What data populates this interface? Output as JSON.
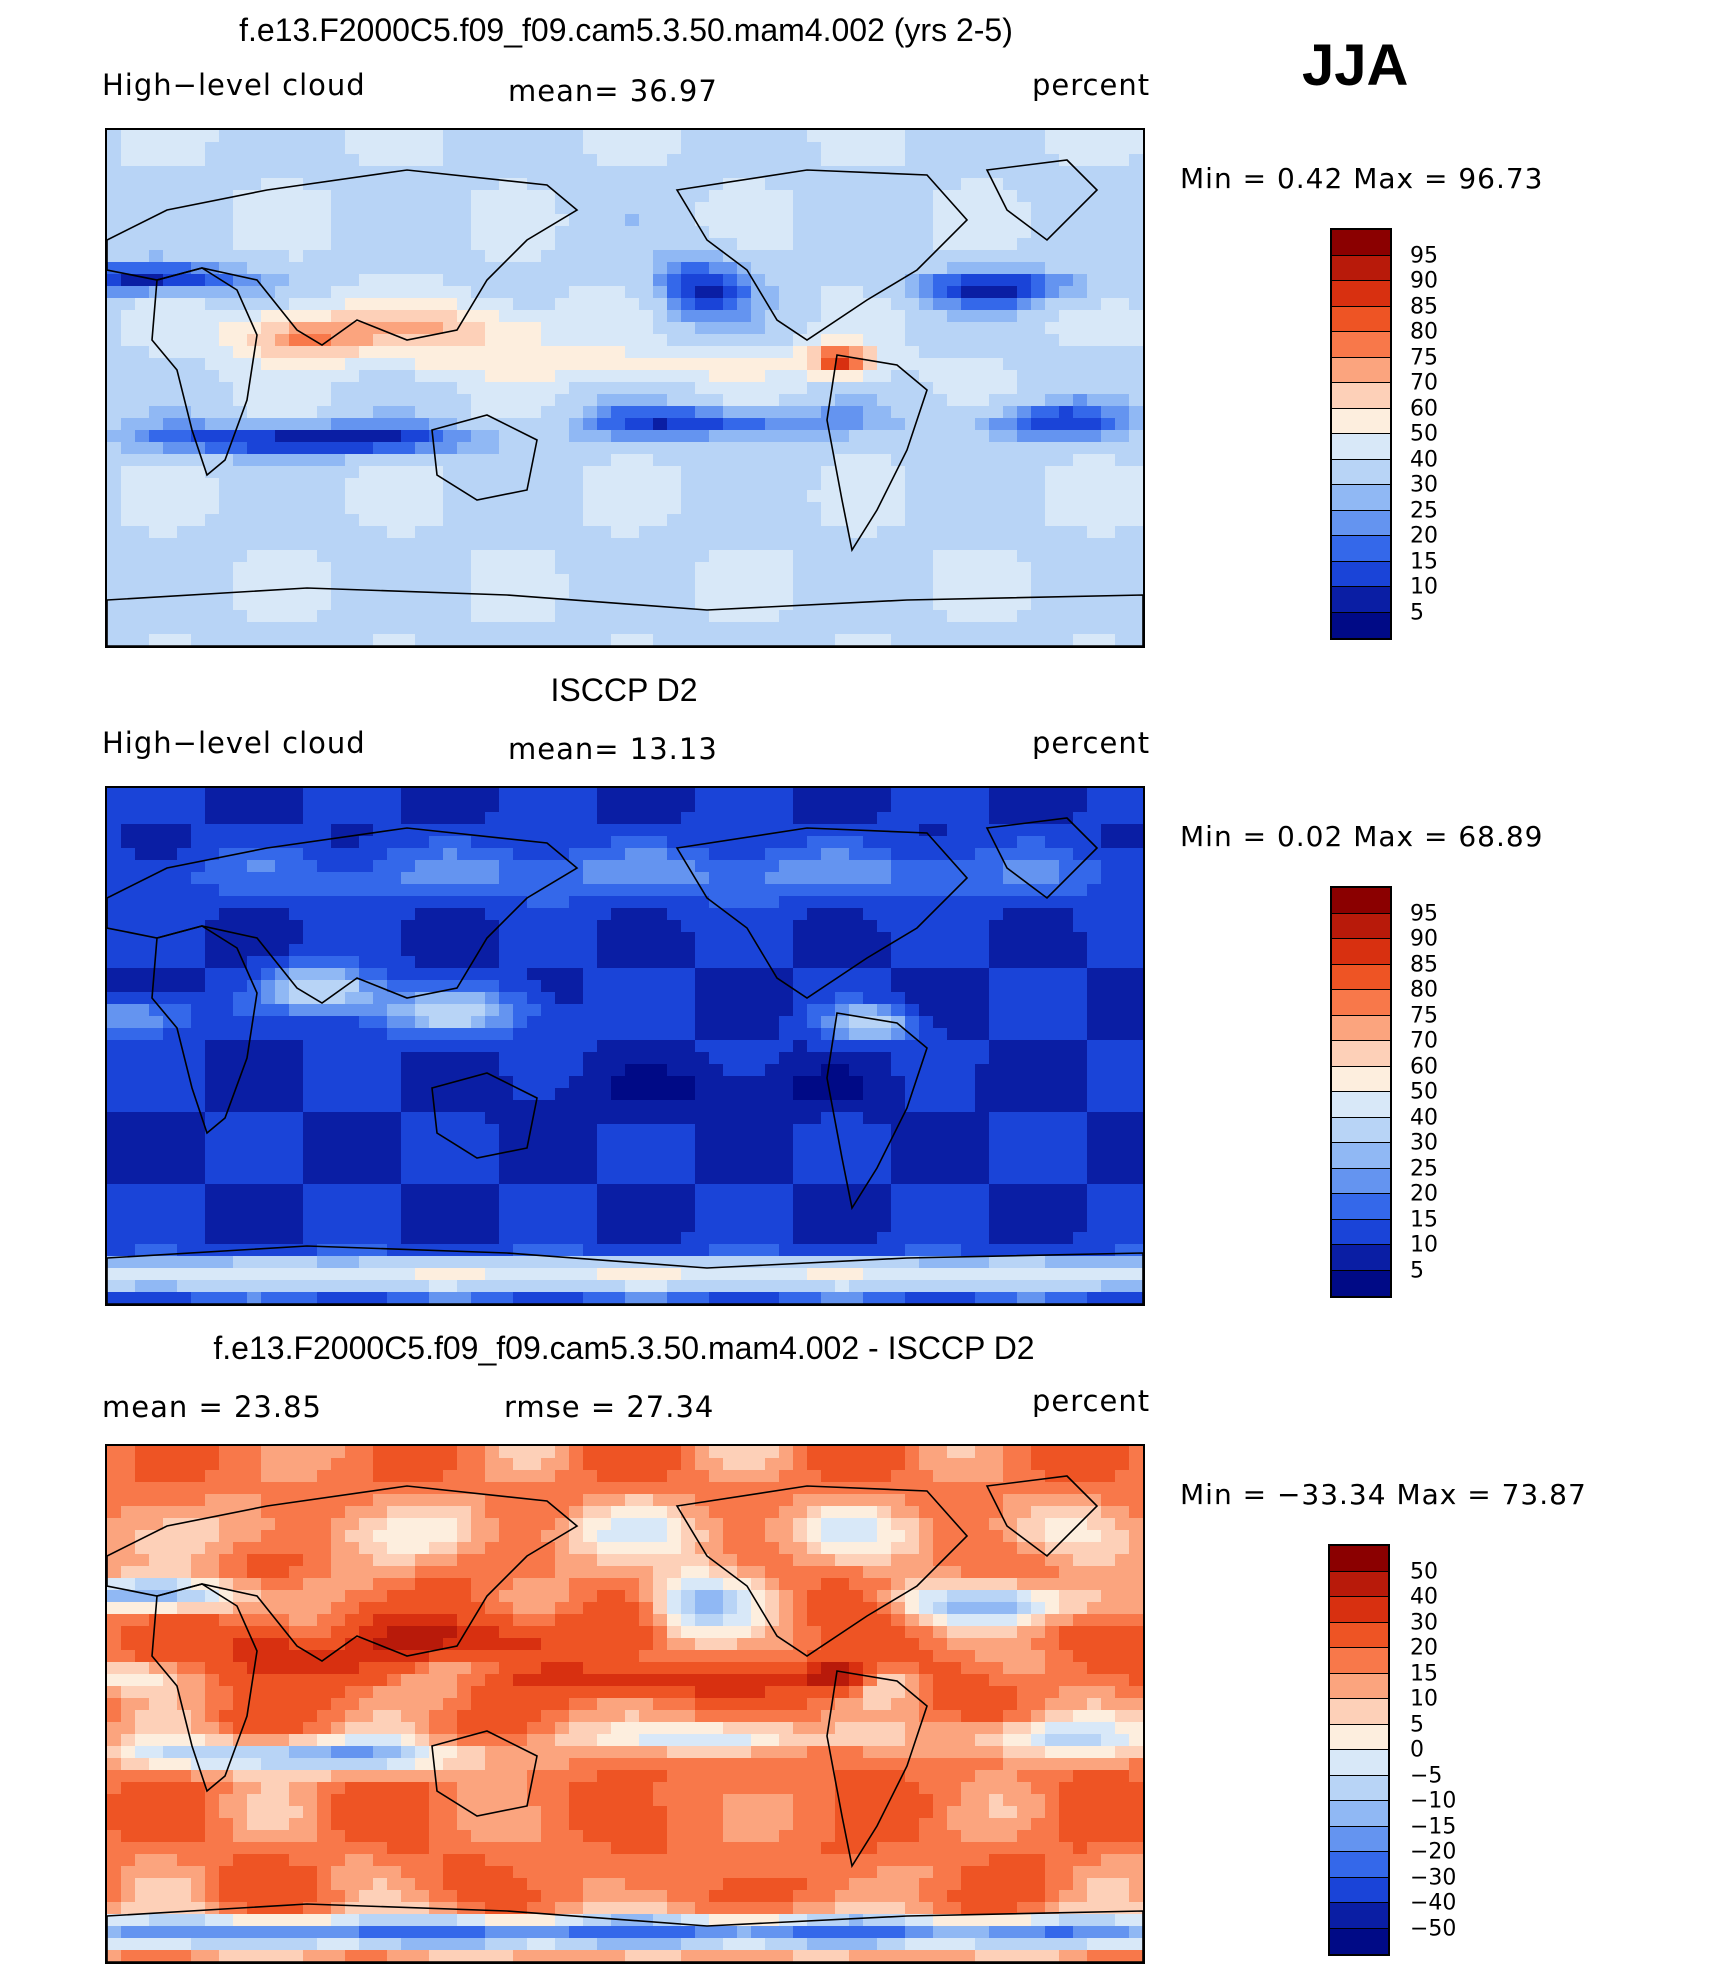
{
  "main_title": "f.e13.F2000C5.f09_f09.cam5.3.50.mam4.002 (yrs 2-5)",
  "season": "JJA",
  "panels": [
    {
      "title": "",
      "left_label": "High−level cloud",
      "center_label": "mean=  36.97",
      "right_label": "percent",
      "minmax": "Min =    0.42 Max =   96.73",
      "colorbar_labels": [
        "95",
        "90",
        "85",
        "80",
        "75",
        "70",
        "60",
        "50",
        "40",
        "30",
        "25",
        "20",
        "15",
        "10",
        "5"
      ],
      "colorbar_colors": [
        "#8b0000",
        "#b81a0a",
        "#d83010",
        "#ee5424",
        "#f8784a",
        "#fba47e",
        "#fdd0b8",
        "#fdeede",
        "#d8e8f8",
        "#b8d4f6",
        "#90b8f4",
        "#6494f0",
        "#3468ea",
        "#1a44d8",
        "#0a1ea4",
        "#000a86"
      ],
      "field": "model"
    },
    {
      "title": "ISCCP D2",
      "left_label": "High−level cloud",
      "center_label": "mean=  13.13",
      "right_label": "percent",
      "minmax": "Min =    0.02 Max =   68.89",
      "colorbar_labels": [
        "95",
        "90",
        "85",
        "80",
        "75",
        "70",
        "60",
        "50",
        "40",
        "30",
        "25",
        "20",
        "15",
        "10",
        "5"
      ],
      "colorbar_colors": [
        "#8b0000",
        "#b81a0a",
        "#d83010",
        "#ee5424",
        "#f8784a",
        "#fba47e",
        "#fdd0b8",
        "#fdeede",
        "#d8e8f8",
        "#b8d4f6",
        "#90b8f4",
        "#6494f0",
        "#3468ea",
        "#1a44d8",
        "#0a1ea4",
        "#000a86"
      ],
      "field": "obs"
    },
    {
      "title": "f.e13.F2000C5.f09_f09.cam5.3.50.mam4.002 - ISCCP D2",
      "left_label": "mean =   23.85",
      "center_label": "rmse =   27.34",
      "right_label": "percent",
      "minmax": "Min = −33.34 Max =   73.87",
      "colorbar_labels": [
        "50",
        "40",
        "30",
        "20",
        "15",
        "10",
        "5",
        "0",
        "−5",
        "−10",
        "−15",
        "−20",
        "−30",
        "−40",
        "−50"
      ],
      "colorbar_colors": [
        "#8b0000",
        "#b81a0a",
        "#d83010",
        "#ee5424",
        "#f8784a",
        "#fba47e",
        "#fdd0b8",
        "#fdeede",
        "#d8e8f8",
        "#b8d4f6",
        "#90b8f4",
        "#6494f0",
        "#3468ea",
        "#1a44d8",
        "#0a1ea4",
        "#000a86"
      ],
      "field": "diff"
    }
  ]
}
